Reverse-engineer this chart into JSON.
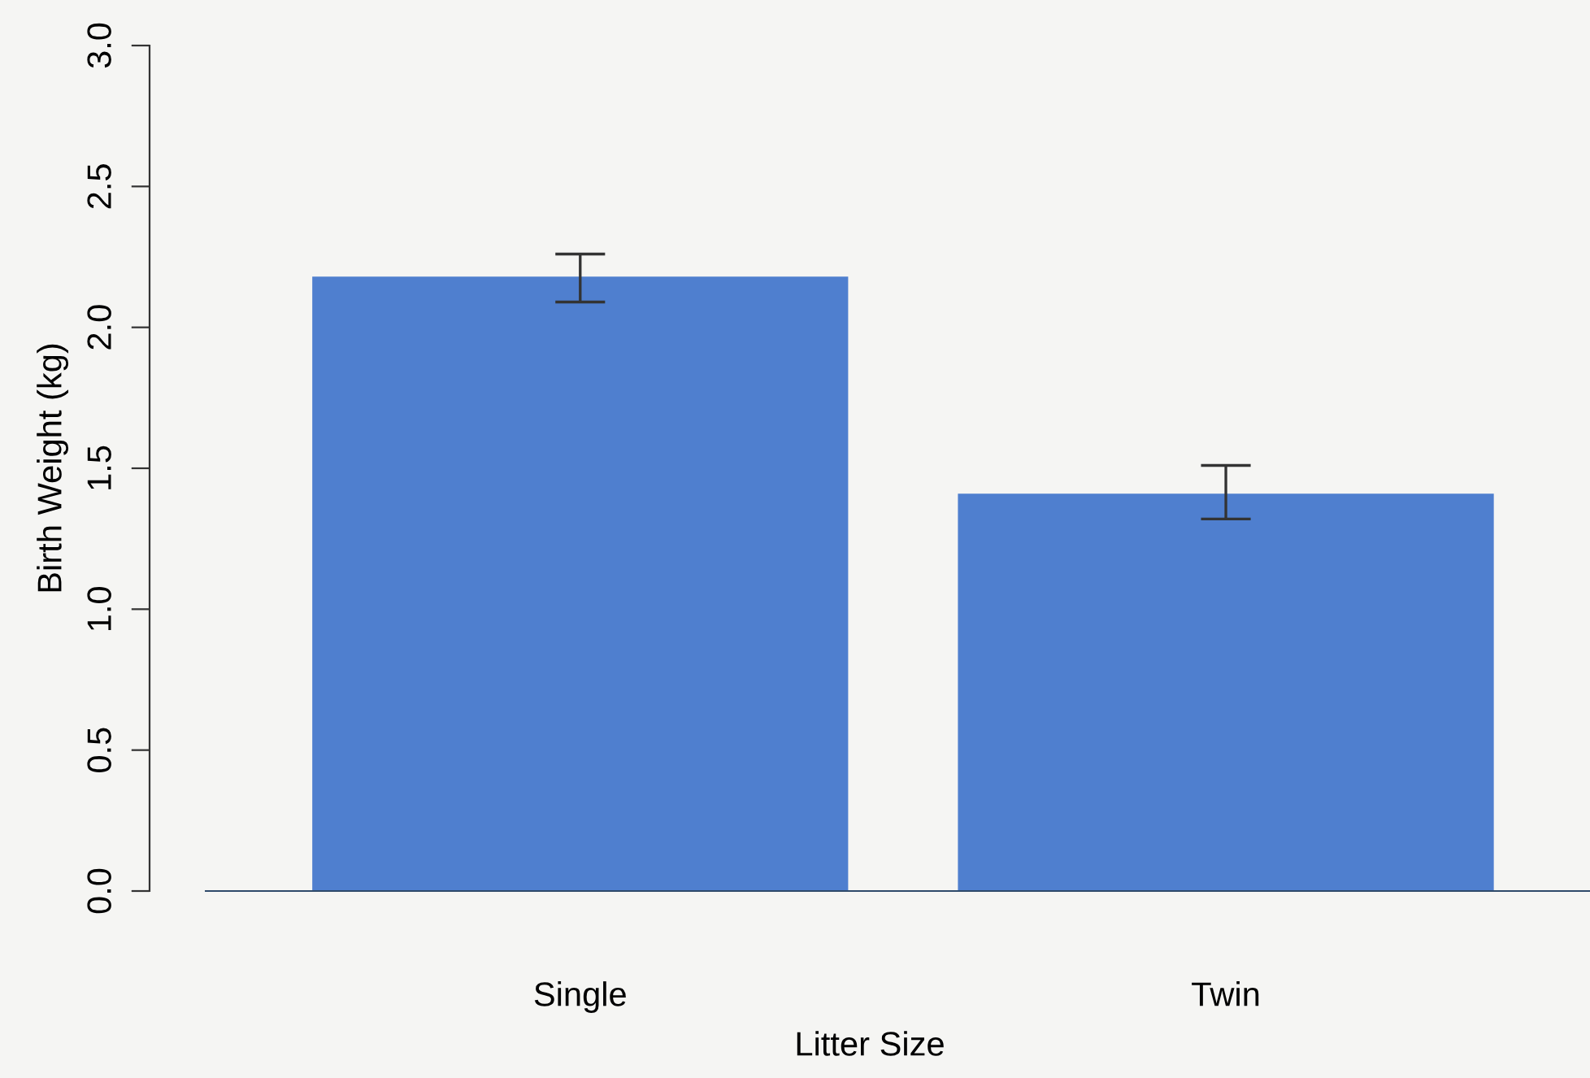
{
  "chart_data": {
    "type": "bar",
    "xlabel": "Litter Size",
    "ylabel": "Birth Weight (kg)",
    "categories": [
      "Single",
      "Twin"
    ],
    "values": [
      2.18,
      1.41
    ],
    "color": "#4f7fcf",
    "errors": [
      [
        2.09,
        2.26
      ],
      [
        1.32,
        1.51
      ]
    ],
    "ylim": [
      0,
      3
    ],
    "yticks": [
      {
        "value": 0,
        "label": "0.0"
      },
      0.5,
      {
        "value": 1,
        "label": "1.0"
      },
      1.5,
      {
        "value": 2,
        "label": "2.0"
      },
      2.5,
      {
        "value": 3,
        "label": "3.0"
      }
    ],
    "grid": false,
    "legend": false
  }
}
